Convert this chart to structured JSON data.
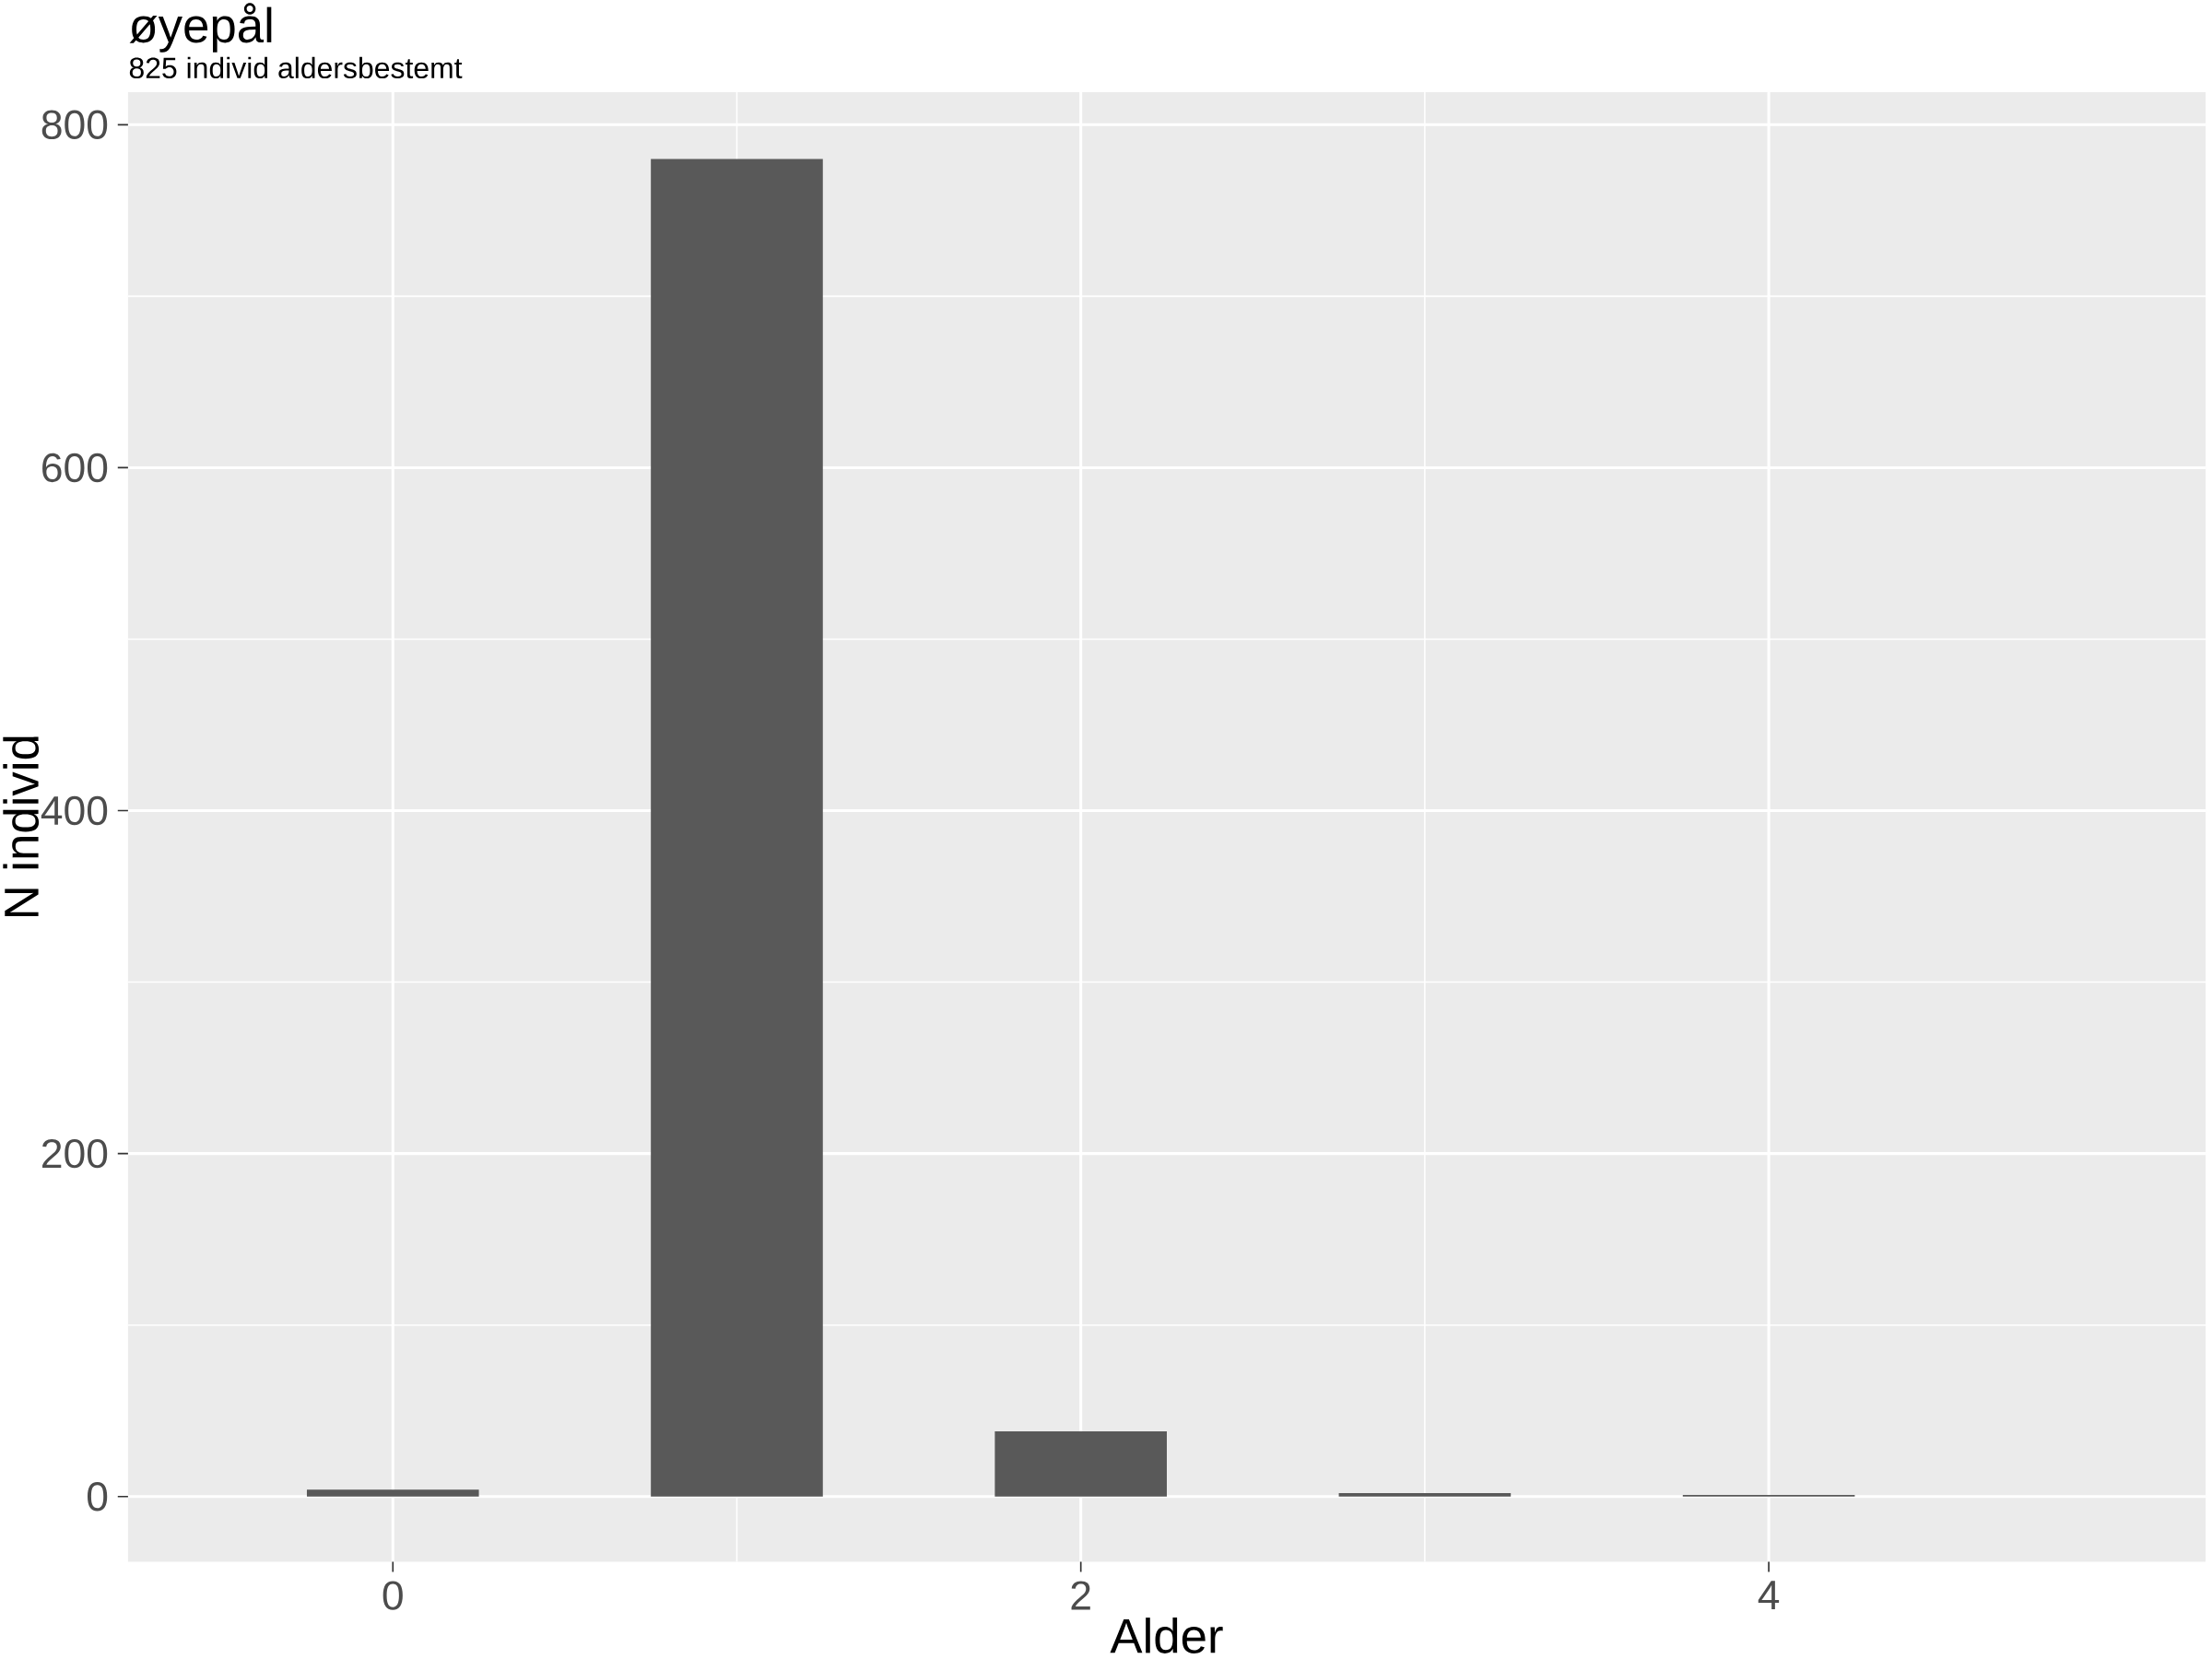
{
  "chart_data": {
    "type": "bar",
    "title": "øyepål",
    "subtitle": "825 individ aldersbestemt",
    "xlabel": "Alder",
    "ylabel": "N individ",
    "x": [
      0,
      1,
      2,
      3,
      4
    ],
    "values": [
      4,
      780,
      38,
      2,
      1
    ],
    "color": "#595959",
    "xlim": [
      -0.77,
      5.27
    ],
    "xticks": [
      0,
      2,
      4
    ],
    "ylim": [
      -38,
      819
    ],
    "yticks": [
      0,
      200,
      400,
      600,
      800
    ],
    "grid": true
  }
}
